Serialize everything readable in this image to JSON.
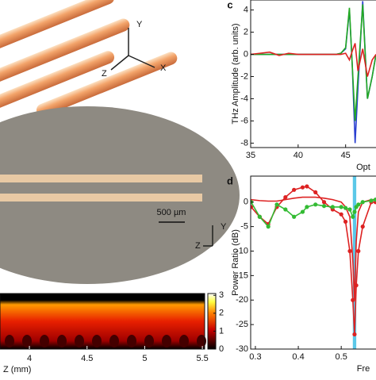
{
  "illustration": {
    "axes": [
      "Y",
      "Z",
      "X"
    ]
  },
  "micrograph": {
    "scale_bar": "500 µm",
    "axes": [
      "Y",
      "Z"
    ]
  },
  "chart_data": [
    {
      "type": "line",
      "label": "c",
      "ylabel": "THz Amplitude (arb. units)",
      "xlabel": "Opt",
      "xlim": [
        35,
        48.2
      ],
      "ylim": [
        -8.4,
        4.9
      ],
      "xticks": [
        35,
        40,
        45
      ],
      "yticks": [
        4,
        2,
        0,
        -2,
        -4,
        -6,
        -8
      ],
      "x": [
        35,
        36,
        37,
        38,
        39,
        40,
        41,
        42,
        43,
        44,
        44.5,
        45,
        45.4,
        45.7,
        46.0,
        46.3,
        46.8,
        47.3,
        47.8,
        48.2
      ],
      "series": [
        {
          "color": "#2a3fd0",
          "values": [
            0,
            0,
            0,
            0,
            0,
            0,
            0,
            0,
            0,
            0,
            0.1,
            0.5,
            4,
            -1,
            -8,
            -3,
            4.8,
            -4,
            -2,
            0
          ]
        },
        {
          "color": "#22aa22",
          "values": [
            0,
            0,
            0,
            0,
            0,
            0,
            0,
            0,
            0,
            0,
            0.1,
            0.6,
            4.2,
            -1,
            -6,
            -2,
            4.5,
            -4,
            -2,
            0
          ]
        },
        {
          "color": "#dd2222",
          "values": [
            0,
            0.1,
            0.2,
            -0.1,
            0.1,
            0,
            0,
            0,
            0,
            0,
            0,
            0.1,
            -0.5,
            0.3,
            1,
            -1.5,
            0.5,
            -2,
            -0.5,
            0
          ]
        }
      ]
    },
    {
      "type": "line",
      "label": "d",
      "ylabel": "Power Ratio (dB)",
      "xlabel": "Fre",
      "xlim": [
        0.289,
        0.581
      ],
      "ylim": [
        -30,
        5.3
      ],
      "xticks": [
        0.3,
        0.4,
        0.5
      ],
      "yticks": [
        0,
        -5,
        -10,
        -15,
        -20,
        -25,
        -30
      ],
      "highlight": [
        0.527,
        0.535
      ],
      "x": [
        0.29,
        0.31,
        0.33,
        0.35,
        0.37,
        0.39,
        0.41,
        0.42,
        0.44,
        0.46,
        0.48,
        0.5,
        0.51,
        0.52,
        0.527,
        0.531,
        0.535,
        0.54,
        0.55,
        0.57,
        0.58
      ],
      "series": [
        {
          "color": "#dd2222",
          "marker": false,
          "values": [
            0.5,
            0.3,
            0.2,
            0.2,
            0.5,
            0.8,
            1,
            1,
            1,
            0.8,
            0.5,
            0,
            -1,
            -3,
            -12,
            -20,
            -8,
            -2,
            0,
            0.5,
            0.5
          ]
        },
        {
          "color": "#dd2222",
          "marker": true,
          "values": [
            -1,
            -3,
            -4.5,
            -1,
            1,
            2.5,
            3,
            3.2,
            2,
            0,
            -1.5,
            -2.5,
            -4,
            -10,
            -20,
            -27,
            -17,
            -10,
            -5,
            0,
            0
          ]
        },
        {
          "color": "#33bb33",
          "marker": true,
          "values": [
            0,
            -3,
            -5,
            -0.5,
            -1.5,
            -3,
            -2,
            -1,
            -0.5,
            -0.8,
            -1,
            -1,
            -1.2,
            -1.5,
            -3,
            -2,
            -1,
            -0.5,
            0,
            0.3,
            0.5
          ]
        }
      ]
    },
    {
      "type": "heatmap",
      "xlabel": "Z (mm)",
      "xlim": [
        3.745,
        5.52
      ],
      "xticks": [
        4,
        4.5,
        5,
        5.5
      ],
      "clim": [
        0,
        3.1
      ],
      "cticks": [
        3,
        2,
        1,
        0
      ]
    }
  ]
}
